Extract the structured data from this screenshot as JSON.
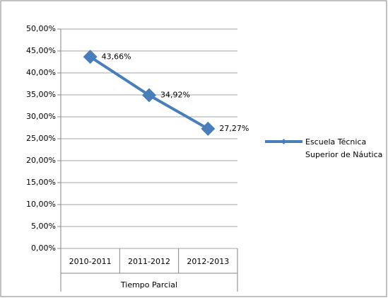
{
  "chart_data": {
    "type": "line",
    "categories": [
      "2010-2011",
      "2011-2012",
      "2012-2013"
    ],
    "x_group_label": "Tiempo Parcial",
    "series": [
      {
        "name": "Escuela Técnica Superior de Náutica",
        "color": "#4a7ebb",
        "values": [
          43.66,
          34.92,
          27.27
        ],
        "value_labels": [
          "43,66%",
          "34,92%",
          "27,27%"
        ]
      }
    ],
    "ylim": [
      0,
      50
    ],
    "yticks": [
      {
        "value": 0,
        "label": "0,00%"
      },
      {
        "value": 5,
        "label": "5,00%"
      },
      {
        "value": 10,
        "label": "10,00%"
      },
      {
        "value": 15,
        "label": "15,00%"
      },
      {
        "value": 20,
        "label": "20,00%"
      },
      {
        "value": 25,
        "label": "25,00%"
      },
      {
        "value": 30,
        "label": "30,00%"
      },
      {
        "value": 35,
        "label": "35,00%"
      },
      {
        "value": 40,
        "label": "40,00%"
      },
      {
        "value": 45,
        "label": "45,00%"
      },
      {
        "value": 50,
        "label": "50,00%"
      }
    ],
    "grid": true,
    "legend": "right"
  }
}
